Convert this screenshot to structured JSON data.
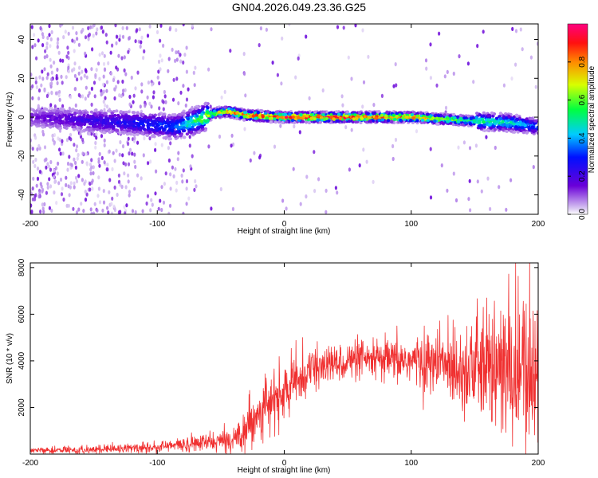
{
  "page": {
    "title": "GN04.2026.049.23.36.G25"
  },
  "chart_data": [
    {
      "type": "heatmap",
      "xlabel": "Height of straight line (km)",
      "ylabel": "Frequency (Hz)",
      "xlim": [
        -200,
        200
      ],
      "ylim": [
        -50,
        48
      ],
      "xticks": [
        -200,
        -100,
        0,
        100,
        200
      ],
      "yticks": [
        -40,
        -20,
        0,
        20,
        40
      ],
      "colorbar": {
        "label": "Normalized spectral amplitude",
        "range": [
          0,
          1
        ],
        "ticks": [
          0.0,
          0.2,
          0.4,
          0.6,
          0.8
        ]
      },
      "ridge": {
        "height_km": [
          -200,
          -150,
          -120,
          -100,
          -85,
          -70,
          -55,
          -45,
          -30,
          0,
          50,
          100,
          150,
          180,
          200
        ],
        "frequency_hz": [
          0,
          -2,
          -3,
          -4,
          -5,
          -2,
          2,
          3,
          1,
          0,
          0,
          0,
          -2,
          -3,
          -5
        ],
        "peak_amplitude": [
          0.15,
          0.25,
          0.3,
          0.35,
          0.4,
          0.6,
          0.75,
          0.85,
          0.95,
          1.0,
          1.0,
          0.9,
          0.6,
          0.5,
          0.35
        ]
      }
    },
    {
      "type": "line",
      "xlabel": "Height of straight line (km)",
      "ylabel": "SNR (10 * v/v)",
      "xlim": [
        -200,
        200
      ],
      "ylim": [
        0,
        8200
      ],
      "xticks": [
        -200,
        -100,
        0,
        100,
        200
      ],
      "yticks": [
        2000,
        4000,
        6000,
        8000
      ],
      "color": "#f03030",
      "envelope": {
        "height_km": [
          -200,
          -150,
          -100,
          -80,
          -60,
          -40,
          -30,
          -20,
          0,
          20,
          50,
          100,
          150,
          180,
          200
        ],
        "snr_mean": [
          150,
          200,
          300,
          400,
          500,
          600,
          1200,
          1800,
          2600,
          3600,
          4000,
          4000,
          3700,
          3500,
          3400
        ],
        "snr_spread": [
          60,
          80,
          120,
          150,
          200,
          250,
          500,
          600,
          600,
          450,
          400,
          500,
          1100,
          1700,
          1900
        ]
      }
    }
  ]
}
